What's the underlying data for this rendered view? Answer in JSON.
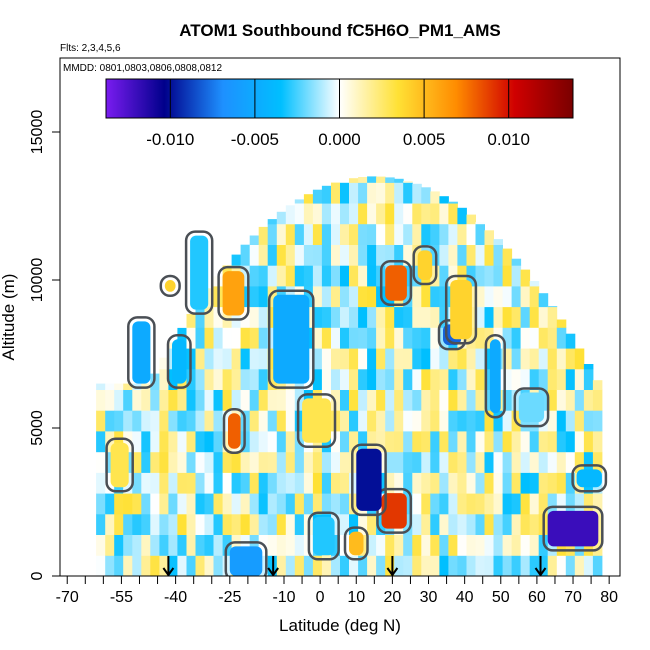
{
  "chart_data": {
    "type": "heatmap",
    "title": "ATOM1 Southbound fC5H6O_PM1_AMS",
    "flights_label": "Flts: 2,3,4,5,6",
    "dates_label": "MMDD: 0801,0803,0806,0808,0812",
    "xlabel": "Latitude (deg N)",
    "ylabel": "Altitude (m)",
    "xlim": [
      -72,
      83
    ],
    "ylim": [
      0,
      17500
    ],
    "x_ticks": [
      "-70",
      "-55",
      "-40",
      "-25",
      "-10",
      "0",
      "10",
      "20",
      "30",
      "40",
      "50",
      "60",
      "70",
      "80"
    ],
    "x_tick_values": [
      -70,
      -55,
      -40,
      -25,
      -10,
      0,
      10,
      20,
      30,
      40,
      50,
      60,
      70,
      80
    ],
    "x_minor_ticks": [
      -65,
      -60,
      -50,
      -45,
      -35,
      -30,
      -20,
      -15,
      -5,
      5,
      15,
      25,
      35,
      45,
      55,
      65,
      75
    ],
    "y_ticks": [
      "0",
      "5000",
      "10000",
      "15000"
    ],
    "y_tick_values": [
      0,
      5000,
      10000,
      15000
    ],
    "colorbar": {
      "range": [
        -0.0138,
        0.0138
      ],
      "ticks": [
        "-0.010",
        "-0.005",
        "0.000",
        "0.005",
        "0.010"
      ],
      "tick_values": [
        -0.01,
        -0.005,
        0.0,
        0.005,
        0.01
      ],
      "colors": [
        "#7a1cf0",
        "#00008b",
        "#1e90ff",
        "#00bfff",
        "#ffffff",
        "#ffe135",
        "#ff8c00",
        "#d00000",
        "#7a0000"
      ]
    },
    "arrows_at_latitude": [
      -42,
      -13,
      20,
      61
    ],
    "regions": [
      {
        "lat": [
          -25.5,
          -22
        ],
        "alt": [
          4300,
          5500
        ],
        "value": 0.008
      },
      {
        "lat": [
          -27,
          -21
        ],
        "alt": [
          8800,
          10300
        ],
        "value": 0.006
      },
      {
        "lat": [
          18,
          24
        ],
        "alt": [
          9300,
          10500
        ],
        "value": 0.008
      },
      {
        "lat": [
          17,
          24
        ],
        "alt": [
          1600,
          2800
        ],
        "value": 0.009
      },
      {
        "lat": [
          10,
          17
        ],
        "alt": [
          2200,
          4300
        ],
        "value": -0.01
      },
      {
        "lat": [
          8,
          12
        ],
        "alt": [
          700,
          1500
        ],
        "value": 0.005
      },
      {
        "lat": [
          63,
          77
        ],
        "alt": [
          1000,
          2200
        ],
        "value": -0.012
      },
      {
        "lat": [
          -13,
          -3
        ],
        "alt": [
          6500,
          9500
        ],
        "value": -0.005
      },
      {
        "lat": [
          -52,
          -47
        ],
        "alt": [
          6500,
          8600
        ],
        "value": -0.005
      },
      {
        "lat": [
          -41,
          -37
        ],
        "alt": [
          6500,
          8000
        ],
        "value": -0.004
      },
      {
        "lat": [
          34,
          39
        ],
        "alt": [
          7800,
          8500
        ],
        "value": -0.008
      },
      {
        "lat": [
          47,
          50
        ],
        "alt": [
          5500,
          8000
        ],
        "value": -0.005
      },
      {
        "lat": [
          -25,
          -16
        ],
        "alt": [
          0,
          1000
        ],
        "value": -0.006
      },
      {
        "lat": [
          -2,
          4
        ],
        "alt": [
          700,
          2000
        ],
        "value": -0.003
      },
      {
        "lat": [
          -36,
          -31
        ],
        "alt": [
          9000,
          11500
        ],
        "value": -0.003
      },
      {
        "lat": [
          -43,
          -40
        ],
        "alt": [
          9600,
          10000
        ],
        "value": 0.004
      },
      {
        "lat": [
          36,
          42
        ],
        "alt": [
          8000,
          10000
        ],
        "value": 0.004
      },
      {
        "lat": [
          71,
          78
        ],
        "alt": [
          3000,
          3600
        ],
        "value": -0.004
      },
      {
        "lat": [
          -5,
          3
        ],
        "alt": [
          4500,
          6000
        ],
        "value": 0.003
      },
      {
        "lat": [
          27,
          31
        ],
        "alt": [
          10000,
          11000
        ],
        "value": 0.004
      },
      {
        "lat": [
          -58,
          -53
        ],
        "alt": [
          3000,
          4500
        ],
        "value": 0.003
      },
      {
        "lat": [
          55,
          62
        ],
        "alt": [
          5200,
          6200
        ],
        "value": -0.002
      }
    ]
  }
}
